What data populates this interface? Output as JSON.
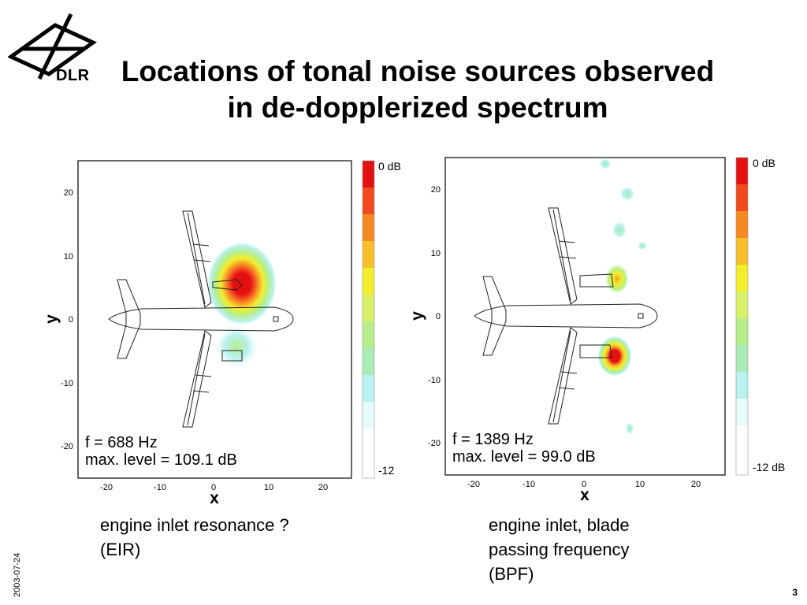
{
  "slide": {
    "title_line1": "Locations of tonal noise sources observed",
    "title_line2": "in de-dopplerized spectrum",
    "logo_text": "DLR",
    "date": "2003-07-24",
    "page_number": "3"
  },
  "colors": {
    "scale": [
      "#e41111",
      "#f04a1e",
      "#f68a22",
      "#f7c02b",
      "#f2ee2c",
      "#d8f06a",
      "#b6ee8c",
      "#a9ecb7",
      "#b8f1f0",
      "#e6fbfc",
      "#ffffff",
      "#ffffff"
    ]
  },
  "plots": [
    {
      "frequency_label": "f = 688 Hz",
      "max_level_label": "max. level = 109.1 dB",
      "colorbar_top": "0 dB",
      "colorbar_bottom": "-12",
      "x_label": "x",
      "y_label": "y",
      "x_ticks": [
        "-20",
        "-10",
        "0",
        "10",
        "20"
      ],
      "y_ticks": [
        "20",
        "10",
        "0",
        "-10",
        "-20"
      ],
      "caption_line1": "engine inlet resonance ?",
      "caption_line2": "(EIR)",
      "caption_line3": ""
    },
    {
      "frequency_label": "f = 1389 Hz",
      "max_level_label": "max. level = 99.0 dB",
      "colorbar_top": "0 dB",
      "colorbar_bottom": "-12 dB",
      "x_label": "x",
      "y_label": "y",
      "x_ticks": [
        "-20",
        "-10",
        "0",
        "10",
        "20"
      ],
      "y_ticks": [
        "20",
        "10",
        "0",
        "-10",
        "-20"
      ],
      "caption_line1": "engine inlet, blade",
      "caption_line2": "passing frequency",
      "caption_line3": "(BPF)"
    }
  ]
}
